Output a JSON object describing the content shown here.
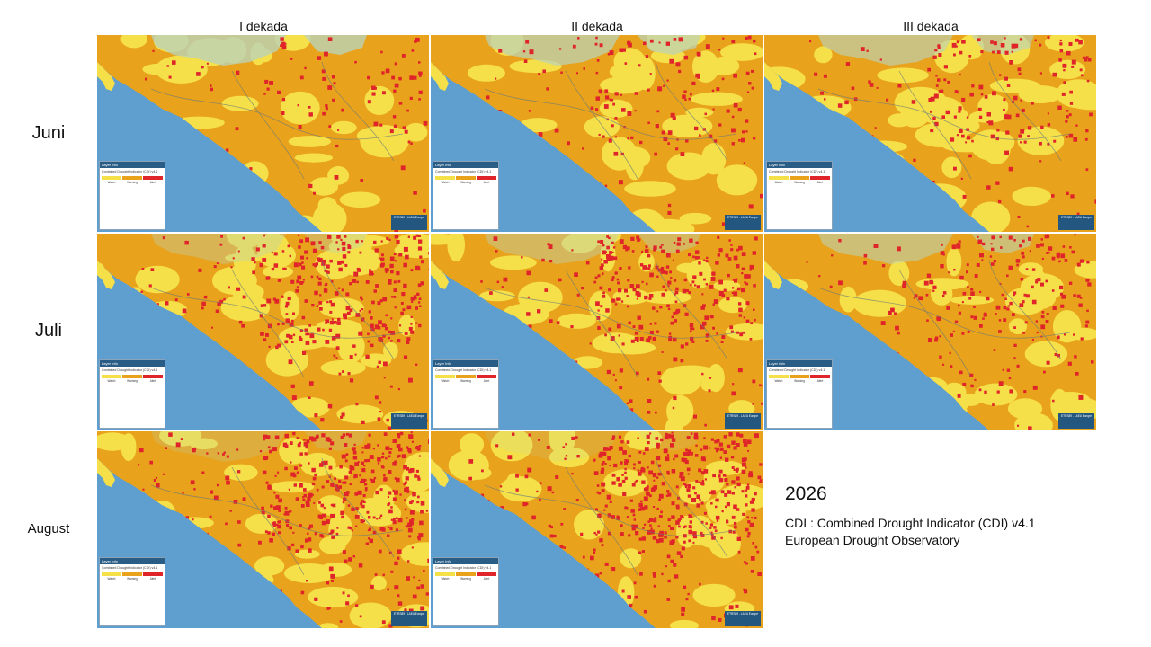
{
  "columns": [
    "I dekada",
    "II dekada",
    "III dekada"
  ],
  "rows": [
    "Juni",
    "Juli",
    "August"
  ],
  "legend": {
    "header": "Layer Info",
    "title": "Combined Drought Indicator (CDI) v4.1",
    "subtitle": "",
    "classes": [
      {
        "label": "Watch",
        "color": "#f5e04a"
      },
      {
        "label": "Warning",
        "color": "#e8a21b"
      },
      {
        "label": "Alert",
        "color": "#e0252a"
      }
    ]
  },
  "attribution": {
    "line1": "ETRS89 - LAEA Europe",
    "line2": "",
    "line3": ""
  },
  "info": {
    "year": "2026",
    "line1": "CDI : Combined Drought Indicator (CDI) v4.1",
    "line2": "European Drought Observatory"
  },
  "colors": {
    "sea": "#5f9fd0",
    "land_neutral": "#bcd2b4",
    "watch": "#f5e04a",
    "warning": "#e8a21b",
    "alert": "#e0252a"
  },
  "maps": [
    {
      "row": "Juni",
      "column": "I dekada",
      "alert_level": 0.08
    },
    {
      "row": "Juni",
      "column": "II dekada",
      "alert_level": 0.12
    },
    {
      "row": "Juni",
      "column": "III dekada",
      "alert_level": 0.15
    },
    {
      "row": "Juli",
      "column": "I dekada",
      "alert_level": 0.28
    },
    {
      "row": "Juli",
      "column": "II dekada",
      "alert_level": 0.26
    },
    {
      "row": "Juli",
      "column": "III dekada",
      "alert_level": 0.18
    },
    {
      "row": "August",
      "column": "I dekada",
      "alert_level": 0.35
    },
    {
      "row": "August",
      "column": "II dekada",
      "alert_level": 0.38
    }
  ]
}
